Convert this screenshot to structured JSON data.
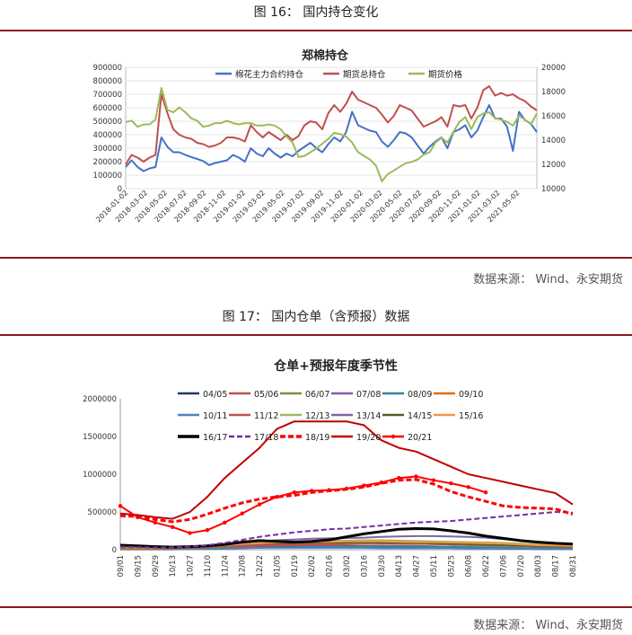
{
  "figures": [
    {
      "title": "图 16：  国内持仓变化",
      "source": "数据来源：  Wind、永安期货"
    },
    {
      "title": "图 17：  国内仓单（含预报）数据",
      "source": "数据来源：  Wind、永安期货"
    }
  ],
  "chart_data": [
    {
      "type": "line",
      "title": "郑棉持仓",
      "x_ticks": [
        "2018-01-02",
        "2018-03-02",
        "2018-05-02",
        "2018-07-02",
        "2018-09-02",
        "2018-11-02",
        "2019-01-02",
        "2019-03-02",
        "2019-05-02",
        "2019-07-02",
        "2019-09-02",
        "2019-11-02",
        "2020-01-02",
        "2020-03-02",
        "2020-05-02",
        "2020-07-02",
        "2020-09-02",
        "2020-11-02",
        "2021-01-02",
        "2021-03-02",
        "2021-05-02"
      ],
      "y_left": {
        "min": 0,
        "max": 900000,
        "ticks": [
          "0",
          "100000",
          "200000",
          "300000",
          "400000",
          "500000",
          "600000",
          "700000",
          "800000",
          "900000"
        ]
      },
      "y_right": {
        "min": 10000,
        "max": 20000,
        "ticks": [
          "10000",
          "12000",
          "14000",
          "16000",
          "18000",
          "20000"
        ]
      },
      "series": [
        {
          "name": "棉花主力合约持仓",
          "color": "#4472c4",
          "axis": "left",
          "values": [
            160000,
            210000,
            160000,
            130000,
            150000,
            160000,
            380000,
            310000,
            270000,
            270000,
            250000,
            235000,
            220000,
            205000,
            175000,
            190000,
            200000,
            210000,
            250000,
            230000,
            200000,
            300000,
            260000,
            240000,
            300000,
            260000,
            230000,
            260000,
            240000,
            280000,
            310000,
            340000,
            300000,
            270000,
            330000,
            380000,
            350000,
            420000,
            570000,
            470000,
            450000,
            430000,
            420000,
            350000,
            310000,
            360000,
            420000,
            410000,
            380000,
            320000,
            260000,
            310000,
            350000,
            380000,
            300000,
            420000,
            440000,
            470000,
            380000,
            430000,
            530000,
            620000,
            520000,
            520000,
            460000,
            280000,
            570000,
            510000,
            480000,
            420000
          ]
        },
        {
          "name": "期货总持仓",
          "color": "#c0504d",
          "axis": "left",
          "values": [
            180000,
            250000,
            230000,
            200000,
            230000,
            250000,
            700000,
            560000,
            440000,
            400000,
            380000,
            370000,
            340000,
            330000,
            310000,
            320000,
            340000,
            380000,
            380000,
            370000,
            350000,
            470000,
            420000,
            380000,
            420000,
            390000,
            360000,
            400000,
            360000,
            390000,
            470000,
            500000,
            490000,
            440000,
            560000,
            620000,
            570000,
            630000,
            720000,
            660000,
            640000,
            620000,
            600000,
            550000,
            490000,
            540000,
            620000,
            600000,
            580000,
            520000,
            460000,
            480000,
            500000,
            530000,
            460000,
            620000,
            610000,
            620000,
            520000,
            600000,
            730000,
            760000,
            690000,
            710000,
            690000,
            700000,
            670000,
            650000,
            610000,
            580000
          ]
        },
        {
          "name": "期货价格",
          "color": "#9bbb59",
          "axis": "right",
          "values": [
            15500,
            15600,
            15100,
            15300,
            15300,
            15700,
            18300,
            16500,
            16300,
            16700,
            16300,
            15800,
            15600,
            15100,
            15200,
            15400,
            15400,
            15600,
            15400,
            15300,
            15400,
            15400,
            15200,
            15200,
            15300,
            15200,
            14900,
            14300,
            13800,
            12600,
            12700,
            13000,
            13300,
            13700,
            14100,
            14600,
            14500,
            14300,
            13800,
            13000,
            12700,
            12400,
            11900,
            10600,
            11200,
            11500,
            11800,
            12100,
            12200,
            12400,
            12800,
            13000,
            13800,
            14200,
            13800,
            14700,
            15500,
            15900,
            14900,
            15900,
            16200,
            16300,
            15800,
            15700,
            15500,
            15200,
            16000,
            15700,
            15300,
            16200
          ]
        }
      ]
    },
    {
      "type": "line",
      "title": "仓单+预报年度季节性",
      "x_ticks": [
        "09/01",
        "09/15",
        "09/29",
        "10/13",
        "10/27",
        "11/10",
        "11/24",
        "12/08",
        "12/22",
        "01/05",
        "01/19",
        "02/02",
        "02/16",
        "03/02",
        "03/16",
        "03/30",
        "04/13",
        "04/27",
        "05/11",
        "05/25",
        "06/08",
        "06/22",
        "07/06",
        "07/20",
        "08/03",
        "08/17",
        "08/31"
      ],
      "y": {
        "min": 0,
        "max": 2000000,
        "ticks": [
          "0",
          "500000",
          "1000000",
          "1500000",
          "2000000"
        ]
      },
      "legend": [
        "04/05",
        "05/06",
        "06/07",
        "07/08",
        "08/09",
        "09/10",
        "10/11",
        "11/12",
        "12/13",
        "13/14",
        "14/15",
        "15/16",
        "16/17",
        "17/18",
        "18/19",
        "19/20",
        "20/21"
      ],
      "series": [
        {
          "name": "04/05",
          "color": "#1f3864",
          "style": "solid",
          "width": 2,
          "values": [
            10000,
            10000,
            10000,
            15000,
            20000,
            25000,
            35000,
            40000,
            45000,
            50000,
            50000,
            50000,
            50000,
            45000,
            45000,
            40000,
            40000,
            35000,
            30000,
            25000,
            20000,
            20000,
            15000,
            15000,
            10000,
            10000,
            10000
          ]
        },
        {
          "name": "05/06",
          "color": "#c0504d",
          "style": "solid",
          "width": 2,
          "values": [
            5000,
            5000,
            5000,
            10000,
            15000,
            20000,
            30000,
            40000,
            50000,
            55000,
            60000,
            60000,
            60000,
            60000,
            55000,
            55000,
            50000,
            50000,
            45000,
            40000,
            35000,
            30000,
            25000,
            20000,
            15000,
            10000,
            10000
          ]
        },
        {
          "name": "06/07",
          "color": "#77933c",
          "style": "solid",
          "width": 2,
          "values": [
            15000,
            15000,
            15000,
            20000,
            25000,
            35000,
            50000,
            65000,
            75000,
            80000,
            85000,
            85000,
            90000,
            90000,
            90000,
            85000,
            80000,
            80000,
            75000,
            70000,
            60000,
            55000,
            50000,
            45000,
            40000,
            35000,
            30000
          ]
        },
        {
          "name": "07/08",
          "color": "#7f5fa3",
          "style": "solid",
          "width": 2,
          "values": [
            10000,
            10000,
            10000,
            15000,
            20000,
            30000,
            45000,
            55000,
            65000,
            75000,
            80000,
            85000,
            90000,
            95000,
            100000,
            105000,
            110000,
            110000,
            105000,
            100000,
            95000,
            85000,
            75000,
            65000,
            55000,
            45000,
            40000
          ]
        },
        {
          "name": "08/09",
          "color": "#31859c",
          "style": "solid",
          "width": 2,
          "values": [
            5000,
            5000,
            5000,
            5000,
            8000,
            10000,
            15000,
            20000,
            25000,
            30000,
            35000,
            40000,
            40000,
            45000,
            45000,
            45000,
            45000,
            45000,
            40000,
            40000,
            35000,
            30000,
            25000,
            20000,
            20000,
            15000,
            15000
          ]
        },
        {
          "name": "09/10",
          "color": "#e46c0a",
          "style": "solid",
          "width": 2,
          "values": [
            10000,
            10000,
            10000,
            15000,
            20000,
            30000,
            40000,
            55000,
            70000,
            80000,
            90000,
            95000,
            100000,
            100000,
            100000,
            95000,
            90000,
            90000,
            85000,
            80000,
            75000,
            70000,
            60000,
            55000,
            50000,
            45000,
            40000
          ]
        },
        {
          "name": "10/11",
          "color": "#4f81bd",
          "style": "solid",
          "width": 2,
          "values": [
            20000,
            20000,
            15000,
            15000,
            15000,
            15000,
            20000,
            20000,
            25000,
            25000,
            25000,
            25000,
            25000,
            25000,
            25000,
            20000,
            20000,
            20000,
            20000,
            20000,
            15000,
            15000,
            15000,
            15000,
            10000,
            10000,
            10000
          ]
        },
        {
          "name": "11/12",
          "color": "#c0504d",
          "style": "solid",
          "width": 2,
          "values": [
            10000,
            10000,
            10000,
            15000,
            20000,
            30000,
            40000,
            50000,
            60000,
            70000,
            75000,
            80000,
            80000,
            85000,
            85000,
            85000,
            80000,
            80000,
            75000,
            70000,
            65000,
            60000,
            55000,
            50000,
            45000,
            40000,
            35000
          ]
        },
        {
          "name": "12/13",
          "color": "#9bbb59",
          "style": "solid",
          "width": 2,
          "values": [
            20000,
            20000,
            20000,
            25000,
            30000,
            40000,
            55000,
            70000,
            85000,
            95000,
            105000,
            110000,
            115000,
            120000,
            125000,
            125000,
            120000,
            115000,
            110000,
            105000,
            100000,
            95000,
            90000,
            80000,
            70000,
            60000,
            55000
          ]
        },
        {
          "name": "13/14",
          "color": "#8064a2",
          "style": "solid",
          "width": 2,
          "values": [
            30000,
            30000,
            30000,
            35000,
            40000,
            55000,
            75000,
            95000,
            110000,
            125000,
            135000,
            145000,
            150000,
            155000,
            160000,
            170000,
            175000,
            180000,
            180000,
            175000,
            170000,
            160000,
            140000,
            120000,
            100000,
            85000,
            70000
          ]
        },
        {
          "name": "14/15",
          "color": "#4f6228",
          "style": "solid",
          "width": 2,
          "values": [
            30000,
            30000,
            25000,
            25000,
            30000,
            40000,
            55000,
            70000,
            80000,
            85000,
            90000,
            95000,
            95000,
            95000,
            95000,
            95000,
            90000,
            90000,
            85000,
            80000,
            75000,
            70000,
            60000,
            55000,
            50000,
            45000,
            40000
          ]
        },
        {
          "name": "15/16",
          "color": "#f79646",
          "style": "solid",
          "width": 2,
          "values": [
            40000,
            35000,
            30000,
            30000,
            35000,
            45000,
            60000,
            75000,
            85000,
            95000,
            100000,
            105000,
            105000,
            110000,
            110000,
            110000,
            105000,
            100000,
            100000,
            95000,
            90000,
            85000,
            80000,
            70000,
            60000,
            55000,
            50000
          ]
        },
        {
          "name": "16/17",
          "color": "#000000",
          "style": "solid",
          "width": 3,
          "values": [
            60000,
            50000,
            40000,
            35000,
            40000,
            50000,
            70000,
            100000,
            120000,
            110000,
            100000,
            110000,
            130000,
            170000,
            210000,
            240000,
            270000,
            280000,
            275000,
            250000,
            220000,
            180000,
            150000,
            120000,
            100000,
            85000,
            75000
          ]
        },
        {
          "name": "17/18",
          "color": "#7030a0",
          "style": "dash",
          "width": 2,
          "values": [
            40000,
            35000,
            30000,
            30000,
            40000,
            60000,
            90000,
            130000,
            170000,
            200000,
            230000,
            250000,
            270000,
            280000,
            300000,
            320000,
            340000,
            360000,
            370000,
            380000,
            400000,
            420000,
            440000,
            460000,
            480000,
            500000,
            490000
          ]
        },
        {
          "name": "18/19",
          "color": "#ff0000",
          "style": "dash",
          "width": 3,
          "values": [
            450000,
            440000,
            400000,
            370000,
            400000,
            470000,
            550000,
            620000,
            670000,
            700000,
            720000,
            760000,
            780000,
            800000,
            830000,
            880000,
            920000,
            930000,
            870000,
            770000,
            700000,
            640000,
            580000,
            560000,
            550000,
            540000,
            470000
          ]
        },
        {
          "name": "19/20",
          "color": "#c00000",
          "style": "solid",
          "width": 2,
          "values": [
            480000,
            460000,
            430000,
            410000,
            500000,
            700000,
            950000,
            1150000,
            1350000,
            1600000,
            1700000,
            1700000,
            1700000,
            1700000,
            1650000,
            1450000,
            1350000,
            1300000,
            1200000,
            1100000,
            1000000,
            950000,
            900000,
            850000,
            800000,
            750000,
            600000
          ]
        },
        {
          "name": "20/21",
          "color": "#ff0000",
          "style": "dot-marker",
          "width": 2,
          "values": [
            580000,
            430000,
            360000,
            300000,
            220000,
            260000,
            360000,
            480000,
            600000,
            700000,
            760000,
            780000,
            790000,
            810000,
            850000,
            890000,
            950000,
            970000,
            920000,
            880000,
            830000,
            760000,
            null,
            null,
            null,
            null,
            null
          ]
        }
      ]
    }
  ]
}
